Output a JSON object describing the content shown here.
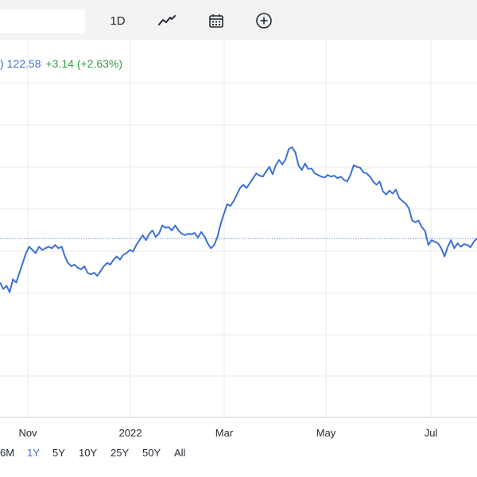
{
  "toolbar": {
    "interval_label": "1D",
    "chart_type_icon": "line-chart-icon",
    "calendar_icon": "calendar-icon",
    "add_icon": "plus-circle-icon"
  },
  "quote": {
    "paren": ")",
    "price": "122.58",
    "change": "+3.14 (+2.63%)",
    "price_color": "#3d6fd6",
    "change_color": "#2ea043"
  },
  "ranges": [
    {
      "label": "6M",
      "active": false
    },
    {
      "label": "1Y",
      "active": true
    },
    {
      "label": "5Y",
      "active": false
    },
    {
      "label": "10Y",
      "active": false
    },
    {
      "label": "25Y",
      "active": false
    },
    {
      "label": "50Y",
      "active": false
    },
    {
      "label": "All",
      "active": false
    }
  ],
  "chart_data": {
    "type": "line",
    "x_tick_labels": [
      "Nov",
      "2022",
      "Mar",
      "May",
      "Jul"
    ],
    "reference_line": "previous close",
    "line_color": "#3d6fd6",
    "grid": true,
    "series": [
      {
        "values": [
          118,
          116,
          117,
          115,
          119,
          118,
          121,
          124,
          127,
          129,
          128,
          127,
          129,
          128,
          128.5,
          129,
          128.5,
          129.5,
          128.5,
          129,
          126,
          124,
          123,
          123.5,
          122.5,
          122,
          123,
          121,
          120.5,
          121,
          120,
          121.5,
          123,
          124,
          123.5,
          125,
          126,
          125,
          126.5,
          127,
          128,
          127.5,
          129.5,
          131,
          132.5,
          131,
          133,
          134,
          132,
          133,
          135.5,
          134.8,
          135,
          134,
          135.5,
          134,
          133,
          132.5,
          133,
          132.8,
          133.2,
          131.8,
          133.5,
          132.2,
          130,
          128.5,
          129.5,
          132,
          136,
          139,
          142,
          141.5,
          143,
          145,
          147,
          148,
          147,
          148.5,
          150,
          151.5,
          150.8,
          150.5,
          152,
          153.5,
          151.2,
          154,
          155.6,
          154.2,
          155.8,
          159,
          159.5,
          158,
          154,
          152.5,
          154.5,
          152.8,
          153,
          151.5,
          151,
          150.5,
          150.2,
          151,
          150.5,
          150.8,
          150,
          150.5,
          149.5,
          149,
          151,
          154,
          153.5,
          153.2,
          151.8,
          151.5,
          150.5,
          149,
          148,
          149,
          146,
          145,
          146.2,
          145.3,
          146.5,
          144,
          143,
          142.2,
          140.8,
          137,
          136.5,
          137,
          135,
          133.8,
          129.5,
          131,
          130.5,
          130,
          128.5,
          126,
          129,
          131,
          128.5,
          130,
          129,
          129.8,
          129.5,
          128.8,
          130.5,
          131.5
        ]
      }
    ]
  }
}
